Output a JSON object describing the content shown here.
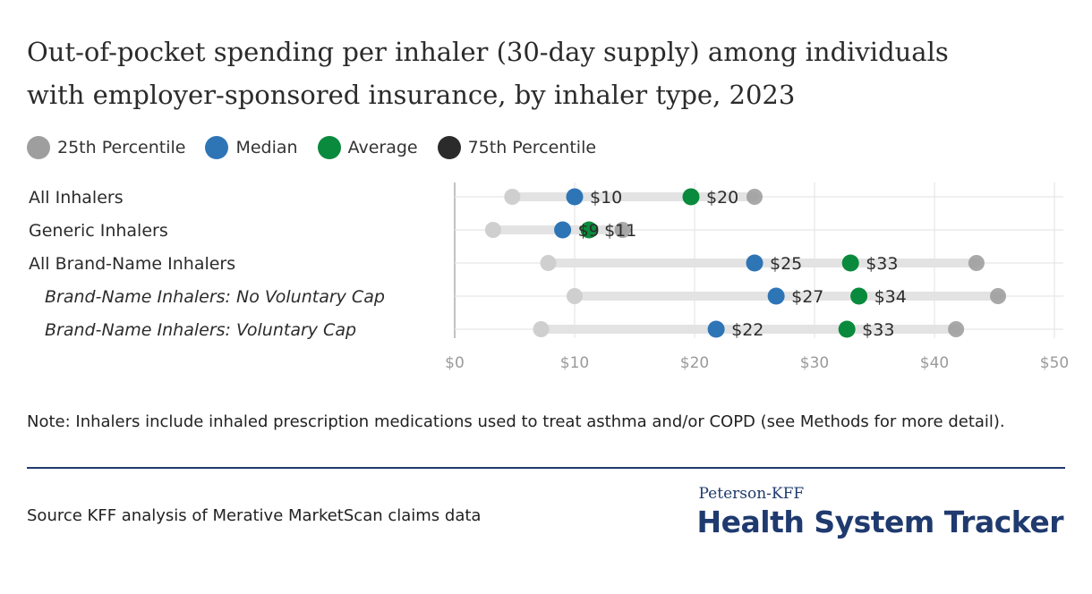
{
  "title": {
    "line1": "Out-of-pocket spending per inhaler (30-day supply) among individuals",
    "line2": "with employer-sponsored insurance, by inhaler type, 2023"
  },
  "legend": [
    {
      "label": "25th Percentile",
      "color": "#9e9e9e"
    },
    {
      "label": "Median",
      "color": "#2e75b6"
    },
    {
      "label": "Average",
      "color": "#0a8a3c"
    },
    {
      "label": "75th Percentile",
      "color": "#2b2b2b"
    }
  ],
  "chart_data": {
    "type": "scatter",
    "subtype": "dot-range",
    "x_ticks": [
      "$0",
      "$10",
      "$20",
      "$30",
      "$40",
      "$50"
    ],
    "xlim": [
      0,
      50
    ],
    "grid": true,
    "legend_placement": "top-left",
    "categories": [
      {
        "label": "All Inhalers",
        "italic": false,
        "p25": 4.8,
        "median": 10,
        "average": 19.7,
        "p75": 25,
        "median_label": "$10",
        "average_label": "$20"
      },
      {
        "label": "Generic Inhalers",
        "italic": false,
        "p25": 3.2,
        "median": 9,
        "average": 11.2,
        "p75": 14,
        "median_label": "$9",
        "average_label": "$11"
      },
      {
        "label": "All Brand-Name Inhalers",
        "italic": false,
        "p25": 7.8,
        "median": 25,
        "average": 33,
        "p75": 43.5,
        "median_label": "$25",
        "average_label": "$33"
      },
      {
        "label": "Brand-Name Inhalers: No Voluntary Cap",
        "italic": true,
        "p25": 10,
        "median": 26.8,
        "average": 33.7,
        "p75": 45.3,
        "median_label": "$27",
        "average_label": "$34"
      },
      {
        "label": "Brand-Name Inhalers: Voluntary Cap",
        "italic": true,
        "p25": 7.2,
        "median": 21.8,
        "average": 32.7,
        "p75": 41.8,
        "median_label": "$22",
        "average_label": "$33"
      }
    ],
    "colors": {
      "p25": "#cfcfcf",
      "median": "#2e75b6",
      "average": "#0a8a3c",
      "p75": "#9a9a9a",
      "range": "#e3e3e3"
    }
  },
  "note": "Note: Inhalers include inhaled prescription medications used to treat asthma and/or COPD (see Methods for more detail).",
  "source": "Source KFF analysis of Merative MarketScan claims data",
  "brand": {
    "small": "Peterson-KFF",
    "big": "Health System Tracker"
  }
}
